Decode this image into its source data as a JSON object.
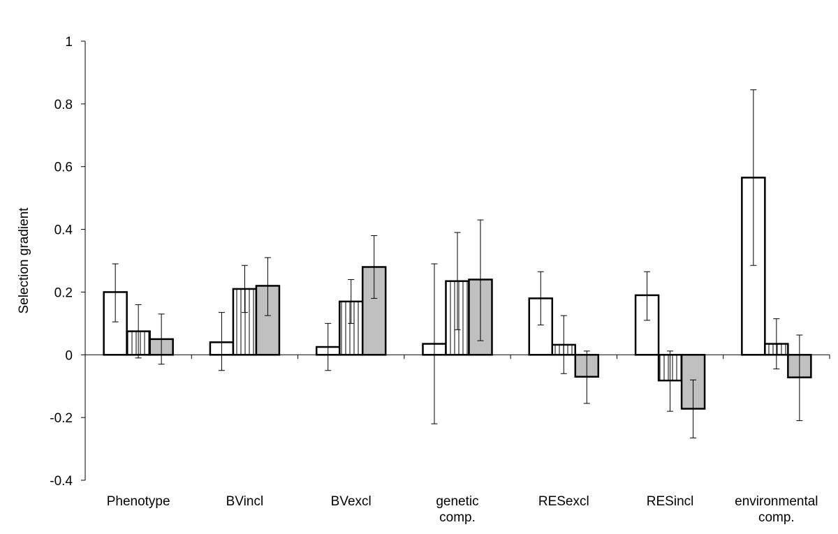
{
  "chart_data": {
    "type": "bar",
    "title": "",
    "xlabel": "",
    "ylabel": "Selection gradient",
    "ylim": [
      -0.4,
      1
    ],
    "yticks": [
      "1",
      "0.8",
      "0.6",
      "0.4",
      "0.2",
      "0",
      "-0.2",
      "-0.4"
    ],
    "grid": false,
    "legend": "none",
    "categories": [
      [
        "Phenotype"
      ],
      [
        "BVincl"
      ],
      [
        "BVexcl"
      ],
      [
        "genetic",
        "comp."
      ],
      [
        "RESexcl"
      ],
      [
        "RESincl"
      ],
      [
        "environmental",
        "comp."
      ]
    ],
    "series": [
      {
        "fill": "#ffffff",
        "pattern": "none",
        "values": [
          0.2,
          0.04,
          0.025,
          0.035,
          0.18,
          0.19,
          0.565
        ],
        "err_low": [
          0.105,
          -0.05,
          -0.05,
          -0.22,
          0.095,
          0.11,
          0.285
        ],
        "err_high": [
          0.29,
          0.135,
          0.1,
          0.29,
          0.265,
          0.265,
          0.845
        ]
      },
      {
        "fill": "#ffffff",
        "pattern": "vertical-stripes",
        "values": [
          0.075,
          0.21,
          0.17,
          0.235,
          0.032,
          -0.082,
          0.035
        ],
        "err_low": [
          -0.01,
          0.135,
          0.1,
          0.08,
          -0.06,
          -0.18,
          -0.045
        ],
        "err_high": [
          0.16,
          0.285,
          0.24,
          0.39,
          0.125,
          0.012,
          0.115
        ]
      },
      {
        "fill": "#c0c0c0",
        "pattern": "none",
        "values": [
          0.05,
          0.22,
          0.28,
          0.24,
          -0.07,
          -0.172,
          -0.072
        ],
        "err_low": [
          -0.03,
          0.125,
          0.18,
          0.045,
          -0.155,
          -0.265,
          -0.21
        ],
        "err_high": [
          0.13,
          0.31,
          0.38,
          0.43,
          0.012,
          -0.08,
          0.063
        ]
      }
    ]
  }
}
